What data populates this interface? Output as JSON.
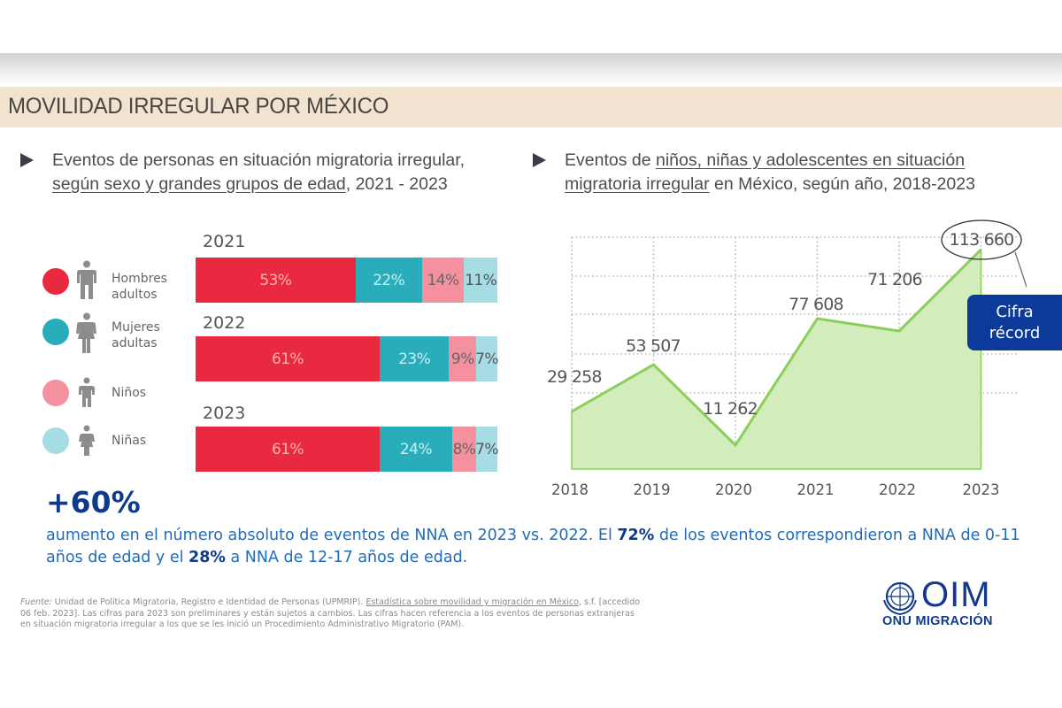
{
  "header": {
    "title": "MOVILIDAD IRREGULAR POR MÉXICO"
  },
  "left_section": {
    "heading_plain": "Eventos de personas en situación migratoria irregular,",
    "heading_underlined": "según sexo y grandes grupos de edad",
    "heading_tail": ", 2021 - 2023"
  },
  "right_section": {
    "heading_prefix": "Eventos de ",
    "heading_underlined_1": "niños, niñas y adolescentes en situación",
    "heading_underlined_2": "migratoria irregular",
    "heading_tail": " en México, según año, 2018-2023"
  },
  "legend": [
    {
      "label": "Hombres\nadultos",
      "color": "#e8293f",
      "icon": "man-icon"
    },
    {
      "label": "Mujeres\nadultas",
      "color": "#2aadbb",
      "icon": "woman-icon"
    },
    {
      "label": "Niños",
      "color": "#f5909e",
      "icon": "boy-icon"
    },
    {
      "label": "Niñas",
      "color": "#a6dce4",
      "icon": "girl-icon"
    }
  ],
  "chart_data": [
    {
      "type": "bar",
      "orientation": "horizontal-stacked-100",
      "title": "Eventos de personas en situación migratoria irregular, según sexo y grandes grupos de edad, 2021 - 2023",
      "categories": [
        "2021",
        "2022",
        "2023"
      ],
      "series": [
        {
          "name": "Hombres adultos",
          "color": "#e8293f",
          "values": [
            53,
            61,
            61
          ],
          "labels": [
            "53%",
            "61%",
            "61%"
          ],
          "label_color": "#f7b8a8"
        },
        {
          "name": "Mujeres adultas",
          "color": "#2aadbb",
          "values": [
            22,
            23,
            24
          ],
          "labels": [
            "22%",
            "23%",
            "24%"
          ],
          "label_color": "#c8f0f4"
        },
        {
          "name": "Niños",
          "color": "#f5909e",
          "values": [
            14,
            9,
            8
          ],
          "labels": [
            "14%",
            "9%",
            "8%"
          ],
          "label_color": "#666666"
        },
        {
          "name": "Niñas",
          "color": "#a6dce4",
          "values": [
            11,
            7,
            7
          ],
          "labels": [
            "11%",
            "7%",
            "7%"
          ],
          "label_color": "#555555"
        }
      ],
      "xlabel": "",
      "ylabel": "",
      "legend": "left"
    },
    {
      "type": "area",
      "title": "Eventos de niños, niñas y adolescentes en situación migratoria irregular en México, según año, 2018-2023",
      "x": [
        "2018",
        "2019",
        "2020",
        "2021",
        "2022",
        "2023"
      ],
      "values": [
        29258,
        53507,
        11262,
        77608,
        71206,
        113660
      ],
      "labels": [
        "29 258",
        "53 507",
        "11 262",
        "77 608",
        "71 206",
        "113 660"
      ],
      "fill_color": "#d2ecbc",
      "line_color": "#8cce5c",
      "grid": true,
      "highlight": {
        "index": 5,
        "annotation": "Cifra\nrécord",
        "annotation_color": "#0b3a9a"
      }
    }
  ],
  "stat": {
    "value": "+60%",
    "text_1": "aumento en el número absoluto de eventos de NNA en 2023 vs. 2022. El ",
    "bold_1": "72%",
    "text_2": " de los eventos correspondieron a NNA de 0-11 años de edad y el ",
    "bold_2": "28%",
    "text_3": " a NNA de 12-17 años de edad."
  },
  "footnote": {
    "label": "Fuente:",
    "text_1": " Unidad de Política Migratoria, Registro e Identidad de Personas (UPMRIP). ",
    "link": "Estadística sobre movilidad y migración en México",
    "text_2": ", s.f. [accedido 06 feb. 2023]. Las cifras para 2023 son preliminares y están sujetos a cambios. Las cifras hacen referencia a los eventos de personas extranjeras en situación migratoria irregular a los que se les inició un Procedimiento Administrativo Migratorio (PAM)."
  },
  "logo": {
    "name": "OIM",
    "subtitle": "ONU MIGRACIÓN"
  }
}
